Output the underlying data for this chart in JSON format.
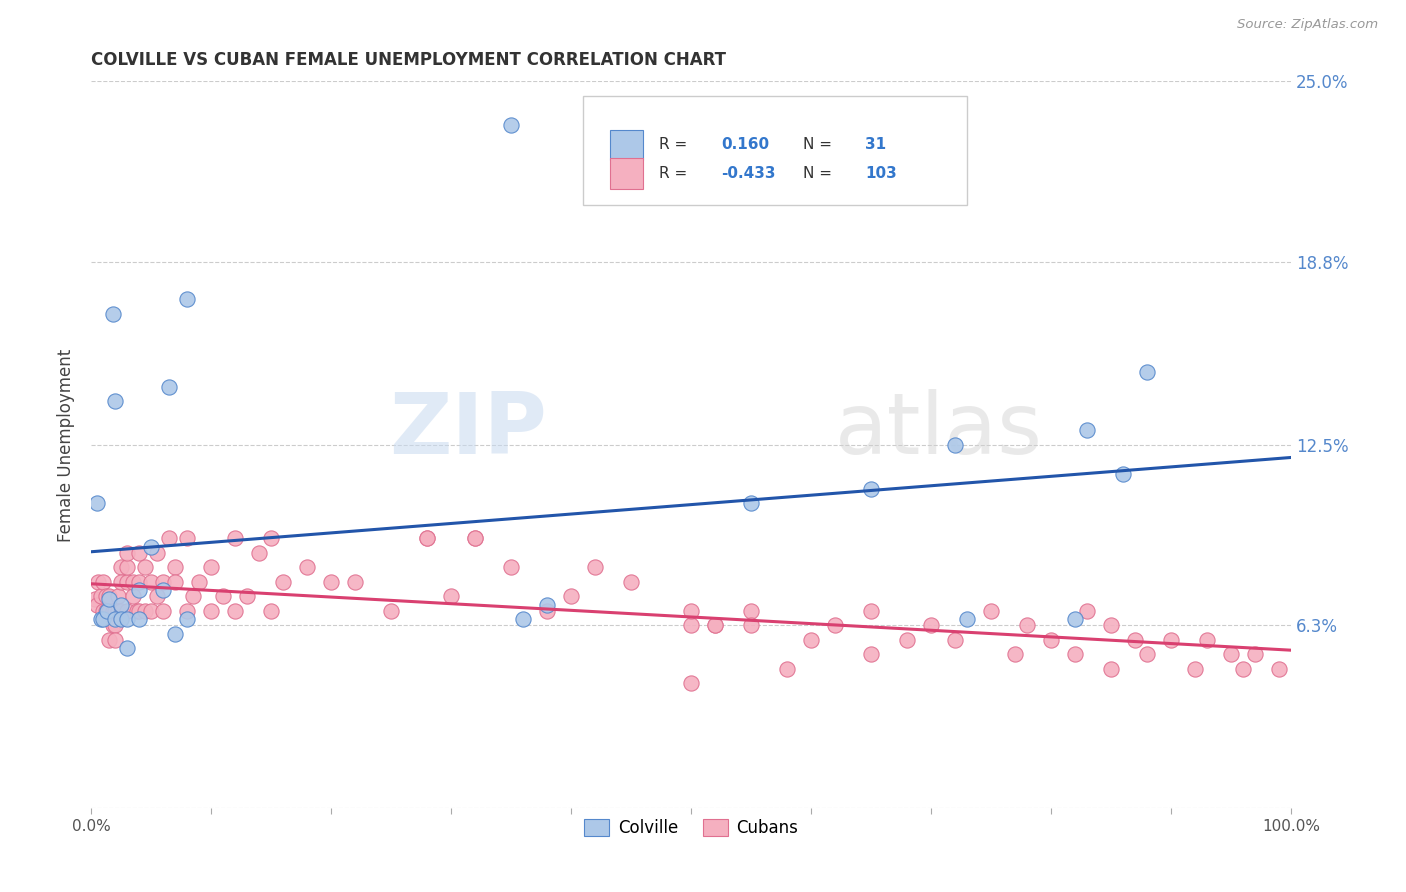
{
  "title": "COLVILLE VS CUBAN FEMALE UNEMPLOYMENT CORRELATION CHART",
  "source": "Source: ZipAtlas.com",
  "ylabel": "Female Unemployment",
  "colville_color": "#adc8e8",
  "colville_edge_color": "#5588cc",
  "colville_line_color": "#2255aa",
  "cubans_color": "#f5b0c0",
  "cubans_edge_color": "#e07090",
  "cubans_line_color": "#d94070",
  "background_color": "#ffffff",
  "grid_color": "#cccccc",
  "ytick_positions": [
    0.0,
    0.063,
    0.125,
    0.188,
    0.25
  ],
  "ytick_labels": [
    "",
    "6.3%",
    "12.5%",
    "18.8%",
    "25.0%"
  ],
  "legend_r_colville": "0.160",
  "legend_n_colville": "31",
  "legend_r_cubans": "-0.433",
  "legend_n_cubans": "103",
  "colville_scatter_x": [
    0.005,
    0.008,
    0.01,
    0.013,
    0.015,
    0.018,
    0.02,
    0.02,
    0.025,
    0.025,
    0.03,
    0.03,
    0.04,
    0.04,
    0.05,
    0.06,
    0.065,
    0.07,
    0.08,
    0.08,
    0.35,
    0.36,
    0.38,
    0.55,
    0.65,
    0.72,
    0.73,
    0.82,
    0.83,
    0.86,
    0.88
  ],
  "colville_scatter_y": [
    0.105,
    0.065,
    0.065,
    0.068,
    0.072,
    0.17,
    0.14,
    0.065,
    0.07,
    0.065,
    0.065,
    0.055,
    0.065,
    0.075,
    0.09,
    0.075,
    0.145,
    0.06,
    0.065,
    0.175,
    0.235,
    0.065,
    0.07,
    0.105,
    0.11,
    0.125,
    0.065,
    0.065,
    0.13,
    0.115,
    0.15
  ],
  "cubans_scatter_x": [
    0.003,
    0.005,
    0.006,
    0.008,
    0.01,
    0.01,
    0.012,
    0.012,
    0.013,
    0.015,
    0.015,
    0.015,
    0.018,
    0.018,
    0.02,
    0.02,
    0.02,
    0.022,
    0.022,
    0.025,
    0.025,
    0.025,
    0.03,
    0.03,
    0.03,
    0.03,
    0.035,
    0.035,
    0.038,
    0.04,
    0.04,
    0.04,
    0.045,
    0.045,
    0.05,
    0.05,
    0.055,
    0.055,
    0.06,
    0.06,
    0.065,
    0.07,
    0.07,
    0.08,
    0.08,
    0.085,
    0.09,
    0.1,
    0.1,
    0.11,
    0.12,
    0.12,
    0.13,
    0.14,
    0.15,
    0.15,
    0.16,
    0.18,
    0.2,
    0.22,
    0.25,
    0.28,
    0.3,
    0.32,
    0.35,
    0.38,
    0.4,
    0.42,
    0.45,
    0.5,
    0.5,
    0.5,
    0.52,
    0.55,
    0.55,
    0.58,
    0.6,
    0.62,
    0.65,
    0.65,
    0.68,
    0.7,
    0.72,
    0.75,
    0.77,
    0.78,
    0.8,
    0.82,
    0.83,
    0.85,
    0.85,
    0.87,
    0.88,
    0.9,
    0.92,
    0.93,
    0.95,
    0.96,
    0.97,
    0.99,
    0.28,
    0.32,
    0.52
  ],
  "cubans_scatter_y": [
    0.072,
    0.07,
    0.078,
    0.073,
    0.068,
    0.078,
    0.068,
    0.073,
    0.068,
    0.068,
    0.073,
    0.058,
    0.068,
    0.063,
    0.068,
    0.063,
    0.058,
    0.073,
    0.068,
    0.083,
    0.068,
    0.078,
    0.078,
    0.083,
    0.088,
    0.068,
    0.073,
    0.078,
    0.068,
    0.088,
    0.078,
    0.068,
    0.083,
    0.068,
    0.068,
    0.078,
    0.073,
    0.088,
    0.078,
    0.068,
    0.093,
    0.083,
    0.078,
    0.093,
    0.068,
    0.073,
    0.078,
    0.083,
    0.068,
    0.073,
    0.093,
    0.068,
    0.073,
    0.088,
    0.093,
    0.068,
    0.078,
    0.083,
    0.078,
    0.078,
    0.068,
    0.093,
    0.073,
    0.093,
    0.083,
    0.068,
    0.073,
    0.083,
    0.078,
    0.043,
    0.063,
    0.068,
    0.063,
    0.068,
    0.063,
    0.048,
    0.058,
    0.063,
    0.053,
    0.068,
    0.058,
    0.063,
    0.058,
    0.068,
    0.053,
    0.063,
    0.058,
    0.053,
    0.068,
    0.048,
    0.063,
    0.058,
    0.053,
    0.058,
    0.048,
    0.058,
    0.053,
    0.048,
    0.053,
    0.048,
    0.093,
    0.093,
    0.063
  ]
}
